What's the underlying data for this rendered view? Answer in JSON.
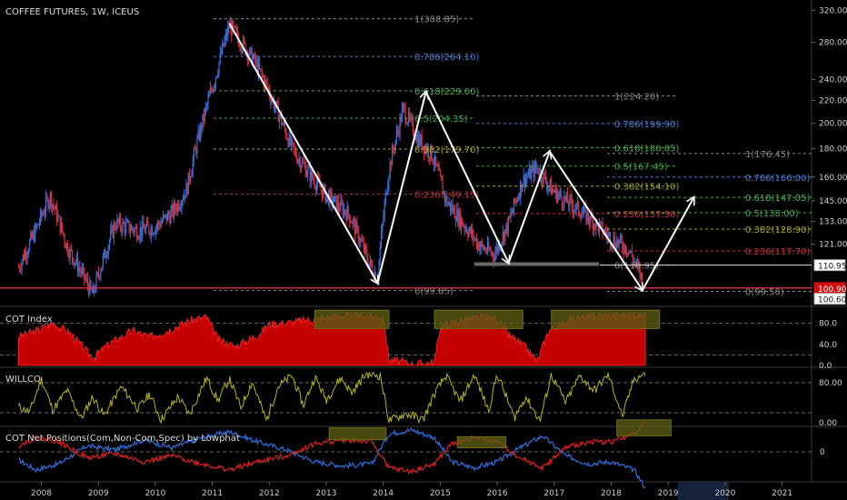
{
  "chart_data": {
    "type": "candlestick",
    "title": "COFFEE FUTURES, 1W, ICEUS",
    "x_ticks": [
      "2008",
      "2009",
      "2010",
      "2011",
      "2012",
      "2013",
      "2014",
      "2015",
      "2016",
      "2017",
      "2018",
      "2019",
      "2020",
      "2021"
    ],
    "y_ticks": [
      "320.00",
      "280.00",
      "240.00",
      "220.00",
      "200.00",
      "180.00",
      "160.00",
      "145.00",
      "133.00",
      "121.00"
    ],
    "price_tags": [
      {
        "text": "110.95",
        "value": 110.95,
        "style": "white"
      },
      {
        "text": "100.90",
        "value": 100.9,
        "style": "red"
      },
      {
        "text": "100.60",
        "value": 100.6,
        "style": "white"
      }
    ],
    "price_series": [
      [
        "2007.6",
        110
      ],
      [
        "2007.9",
        128
      ],
      [
        "2008.15",
        148
      ],
      [
        "2008.45",
        120
      ],
      [
        "2008.9",
        98
      ],
      [
        "2009.3",
        132
      ],
      [
        "2009.7",
        128
      ],
      [
        "2010.0",
        130
      ],
      [
        "2010.3",
        138
      ],
      [
        "2010.55",
        152
      ],
      [
        "2010.85",
        205
      ],
      [
        "2011.05",
        242
      ],
      [
        "2011.3",
        300
      ],
      [
        "2011.45",
        285
      ],
      [
        "2011.75",
        258
      ],
      [
        "2012.1",
        215
      ],
      [
        "2012.4",
        180
      ],
      [
        "2012.7",
        162
      ],
      [
        "2013.0",
        148
      ],
      [
        "2013.4",
        137
      ],
      [
        "2013.75",
        112
      ],
      [
        "2013.9",
        105
      ],
      [
        "2014.1",
        165
      ],
      [
        "2014.35",
        212
      ],
      [
        "2014.6",
        188
      ],
      [
        "2014.85",
        176
      ],
      [
        "2015.1",
        145
      ],
      [
        "2015.4",
        132
      ],
      [
        "2015.7",
        120
      ],
      [
        "2015.95",
        116
      ],
      [
        "2016.2",
        132
      ],
      [
        "2016.45",
        158
      ],
      [
        "2016.7",
        166
      ],
      [
        "2016.95",
        152
      ],
      [
        "2017.2",
        145
      ],
      [
        "2017.5",
        138
      ],
      [
        "2017.75",
        131
      ],
      [
        "2018.0",
        124
      ],
      [
        "2018.3",
        119
      ],
      [
        "2018.55",
        104
      ]
    ],
    "fib_sets": [
      {
        "levels": [
          {
            "label": "1(308.85)",
            "value": 308.85
          },
          {
            "label": "0.786(264.10)",
            "value": 264.1
          },
          {
            "label": "0.618(229.00)",
            "value": 229
          },
          {
            "label": "0.5(204.35)",
            "value": 204.35
          },
          {
            "label": "0.382(179.70)",
            "value": 179.7
          },
          {
            "label": "0.236(149.15)",
            "value": 149.15
          },
          {
            "label": "0(99.85)",
            "value": 99.85
          }
        ]
      },
      {
        "levels": [
          {
            "label": "1(224.20)",
            "value": 224.2
          },
          {
            "label": "0.786(199.90)",
            "value": 199.9
          },
          {
            "label": "0.618(180.85)",
            "value": 180.85
          },
          {
            "label": "0.5(167.45)",
            "value": 167.45
          },
          {
            "label": "0.382(154.10)",
            "value": 154.1
          },
          {
            "label": "0.236(137.50)",
            "value": 137.5
          },
          {
            "label": "0(110.95)",
            "value": 110.95
          }
        ]
      },
      {
        "levels": [
          {
            "label": "1(176.45)",
            "value": 176.45
          },
          {
            "label": "0.786(160.00)",
            "value": 160
          },
          {
            "label": "0.618(147.05)",
            "value": 147.05
          },
          {
            "label": "0.5(138.00)",
            "value": 138
          },
          {
            "label": "0.382(128.90)",
            "value": 128.9
          },
          {
            "label": "0.236(117.70)",
            "value": 117.7
          },
          {
            "label": "0(99.50)",
            "value": 99.5
          }
        ]
      }
    ],
    "arrows": [
      [
        [
          "2011.3",
          303
        ],
        [
          "2013.9",
          103
        ]
      ],
      [
        [
          "2013.9",
          103
        ],
        [
          "2014.75",
          228
        ]
      ],
      [
        [
          "2014.75",
          228
        ],
        [
          "2016.2",
          112
        ]
      ],
      [
        [
          "2016.2",
          112
        ],
        [
          "2016.92",
          178
        ]
      ],
      [
        [
          "2016.92",
          178
        ],
        [
          "2018.55",
          100
        ]
      ],
      [
        [
          "2018.55",
          100
        ],
        [
          "2019.45",
          147
        ]
      ]
    ],
    "cot_index": {
      "title": "COT Index",
      "y_ticks": [
        "80.0",
        "40.0",
        "0.0"
      ],
      "values": [
        [
          "2007.6",
          55
        ],
        [
          "2007.9",
          65
        ],
        [
          "2008.2",
          80
        ],
        [
          "2008.5",
          62
        ],
        [
          "2008.9",
          14
        ],
        [
          "2009.2",
          42
        ],
        [
          "2009.6",
          66
        ],
        [
          "2009.9",
          54
        ],
        [
          "2010.3",
          70
        ],
        [
          "2010.6",
          85
        ],
        [
          "2010.9",
          92
        ],
        [
          "2011.1",
          50
        ],
        [
          "2011.4",
          36
        ],
        [
          "2011.8",
          58
        ],
        [
          "2012.0",
          78
        ],
        [
          "2012.4",
          82
        ],
        [
          "2012.8",
          88
        ],
        [
          "2013.2",
          94
        ],
        [
          "2013.6",
          96
        ],
        [
          "2014.0",
          92
        ],
        [
          "2014.1",
          12
        ],
        [
          "2014.5",
          3
        ],
        [
          "2014.9",
          6
        ],
        [
          "2015.0",
          74
        ],
        [
          "2015.4",
          86
        ],
        [
          "2015.8",
          92
        ],
        [
          "2016.0",
          88
        ],
        [
          "2016.2",
          58
        ],
        [
          "2016.5",
          34
        ],
        [
          "2016.7",
          8
        ],
        [
          "2016.9",
          66
        ],
        [
          "2017.3",
          88
        ],
        [
          "2017.7",
          94
        ],
        [
          "2018.1",
          96
        ],
        [
          "2018.6",
          98
        ]
      ]
    },
    "willco": {
      "title": "WILLCO",
      "y_ticks": [
        "80.00",
        "0.00"
      ],
      "values": [
        [
          "2007.6",
          32
        ],
        [
          "2007.8",
          22
        ],
        [
          "2008.0",
          88
        ],
        [
          "2008.2",
          25
        ],
        [
          "2008.45",
          65
        ],
        [
          "2008.7",
          8
        ],
        [
          "2008.9",
          52
        ],
        [
          "2009.1",
          14
        ],
        [
          "2009.4",
          72
        ],
        [
          "2009.7",
          28
        ],
        [
          "2009.9",
          58
        ],
        [
          "2010.1",
          6
        ],
        [
          "2010.4",
          52
        ],
        [
          "2010.6",
          16
        ],
        [
          "2010.9",
          90
        ],
        [
          "2011.1",
          44
        ],
        [
          "2011.3",
          88
        ],
        [
          "2011.5",
          30
        ],
        [
          "2011.7",
          82
        ],
        [
          "2011.95",
          4
        ],
        [
          "2012.15",
          72
        ],
        [
          "2012.4",
          94
        ],
        [
          "2012.6",
          34
        ],
        [
          "2012.8",
          92
        ],
        [
          "2013.0",
          46
        ],
        [
          "2013.25",
          90
        ],
        [
          "2013.45",
          60
        ],
        [
          "2013.7",
          98
        ],
        [
          "2013.95",
          94
        ],
        [
          "2014.1",
          4
        ],
        [
          "2014.4",
          18
        ],
        [
          "2014.7",
          6
        ],
        [
          "2014.9",
          58
        ],
        [
          "2015.1",
          94
        ],
        [
          "2015.35",
          42
        ],
        [
          "2015.6",
          96
        ],
        [
          "2015.85",
          24
        ],
        [
          "2016.0",
          98
        ],
        [
          "2016.3",
          10
        ],
        [
          "2016.5",
          52
        ],
        [
          "2016.75",
          4
        ],
        [
          "2016.95",
          96
        ],
        [
          "2017.2",
          40
        ],
        [
          "2017.45",
          94
        ],
        [
          "2017.7",
          64
        ],
        [
          "2017.95",
          96
        ],
        [
          "2018.2",
          12
        ],
        [
          "2018.4",
          88
        ],
        [
          "2018.6",
          98
        ]
      ]
    },
    "cot_net": {
      "title": "COT Net Positions(Com,Non-Com,Spec) by Lowphat",
      "y_ticks": [
        "0"
      ],
      "series": [
        {
          "color": "#2f6fdc",
          "values": [
            [
              "2007.6",
              -0.4
            ],
            [
              "2007.9",
              -0.9
            ],
            [
              "2008.3",
              -0.6
            ],
            [
              "2008.8",
              0.3
            ],
            [
              "2009.3",
              0.1
            ],
            [
              "2009.8",
              0.6
            ],
            [
              "2010.3",
              0.2
            ],
            [
              "2010.8",
              0.7
            ],
            [
              "2011.3",
              1.0
            ],
            [
              "2011.8",
              0.5
            ],
            [
              "2012.3",
              0.1
            ],
            [
              "2012.8",
              -0.5
            ],
            [
              "2013.3",
              -0.7
            ],
            [
              "2013.8",
              -0.6
            ],
            [
              "2014.1",
              0.9
            ],
            [
              "2014.5",
              1.1
            ],
            [
              "2014.9",
              0.7
            ],
            [
              "2015.2",
              -0.5
            ],
            [
              "2015.6",
              -0.8
            ],
            [
              "2016.0",
              -0.5
            ],
            [
              "2016.4",
              0.2
            ],
            [
              "2016.8",
              0.8
            ],
            [
              "2017.2",
              -0.2
            ],
            [
              "2017.6",
              -0.6
            ],
            [
              "2018.0",
              -0.5
            ],
            [
              "2018.4",
              -0.9
            ],
            [
              "2018.6",
              -1.8
            ]
          ]
        },
        {
          "color": "#e02020",
          "values": [
            [
              "2007.6",
              0.3
            ],
            [
              "2007.9",
              0.7
            ],
            [
              "2008.3",
              0.5
            ],
            [
              "2008.8",
              -0.3
            ],
            [
              "2009.3",
              -0.1
            ],
            [
              "2009.8",
              -0.5
            ],
            [
              "2010.3",
              -0.2
            ],
            [
              "2010.8",
              -0.6
            ],
            [
              "2011.3",
              -0.9
            ],
            [
              "2011.8",
              -0.5
            ],
            [
              "2012.3",
              -0.2
            ],
            [
              "2012.8",
              0.4
            ],
            [
              "2013.3",
              0.6
            ],
            [
              "2013.8",
              0.5
            ],
            [
              "2014.1",
              -0.8
            ],
            [
              "2014.5",
              -1.0
            ],
            [
              "2014.9",
              -0.6
            ],
            [
              "2015.2",
              0.4
            ],
            [
              "2015.6",
              0.7
            ],
            [
              "2016.0",
              0.5
            ],
            [
              "2016.4",
              -0.3
            ],
            [
              "2016.8",
              -0.8
            ],
            [
              "2017.2",
              0.2
            ],
            [
              "2017.6",
              0.5
            ],
            [
              "2018.0",
              0.5
            ],
            [
              "2018.4",
              0.9
            ],
            [
              "2018.6",
              1.5
            ]
          ]
        }
      ]
    },
    "highlight_zones": [
      {
        "panel": "cot_index",
        "from": "2012.8",
        "to": "2014.1",
        "lo": 70,
        "hi": 105
      },
      {
        "panel": "cot_index",
        "from": "2014.9",
        "to": "2016.45",
        "lo": 70,
        "hi": 105
      },
      {
        "panel": "cot_index",
        "from": "2016.95",
        "to": "2018.85",
        "lo": 70,
        "hi": 105
      },
      {
        "panel": "cot_net",
        "from": "2013.05",
        "to": "2014.05",
        "lo": 0.6,
        "hi": 1.2
      },
      {
        "panel": "cot_net",
        "from": "2015.3",
        "to": "2016.15",
        "lo": 0.2,
        "hi": 0.75
      },
      {
        "panel": "cot_net",
        "from": "2018.1",
        "to": "2019.05",
        "lo": 0.8,
        "hi": 1.6
      }
    ]
  }
}
